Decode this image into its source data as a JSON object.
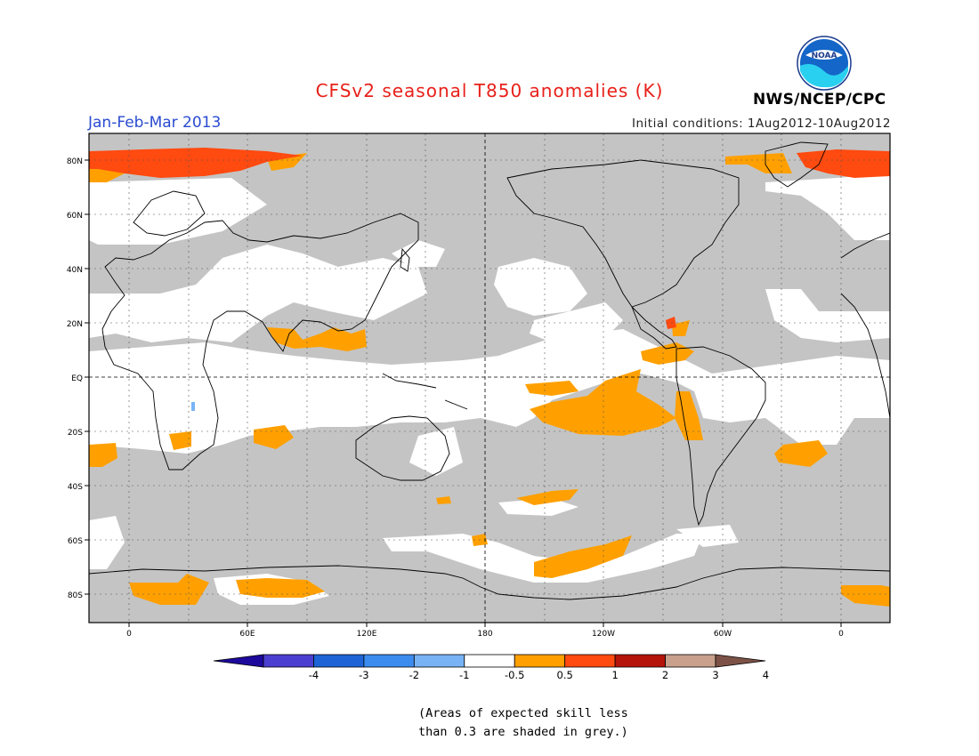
{
  "header": {
    "title": "CFSv2 seasonal T850 anomalies (K)",
    "period": "Jan-Feb-Mar 2013",
    "initial_conditions": "Initial conditions: 1Aug2012-10Aug2012",
    "agency": "NWS/NCEP/CPC",
    "logo_text": "NOAA"
  },
  "map": {
    "lon_labels": [
      "0",
      "60E",
      "120E",
      "180",
      "120W",
      "60W",
      "0"
    ],
    "lat_labels": [
      "80N",
      "60N",
      "40N",
      "20N",
      "EQ",
      "20S",
      "40S",
      "60S",
      "80S"
    ],
    "colors": {
      "grey_skill_mask": "#c4c4c4",
      "anom_0_5_to_1": "#ffa000",
      "anom_1_to_2": "#ff4a10"
    }
  },
  "colorbar": {
    "labels": [
      "-4",
      "-3",
      "-2",
      "-1",
      "-0.5",
      "0.5",
      "1",
      "2",
      "3",
      "4"
    ],
    "colors": [
      "#1d0a9c",
      "#4a3fd0",
      "#1e64d7",
      "#3c8cf0",
      "#78b4f5",
      "#ffffff",
      "#ffa000",
      "#ff4a10",
      "#b4140a",
      "#c8a08c",
      "#7d5246"
    ]
  },
  "footnote": {
    "line1": "(Areas of expected skill less",
    "line2": "than 0.3 are shaded in grey.)"
  }
}
